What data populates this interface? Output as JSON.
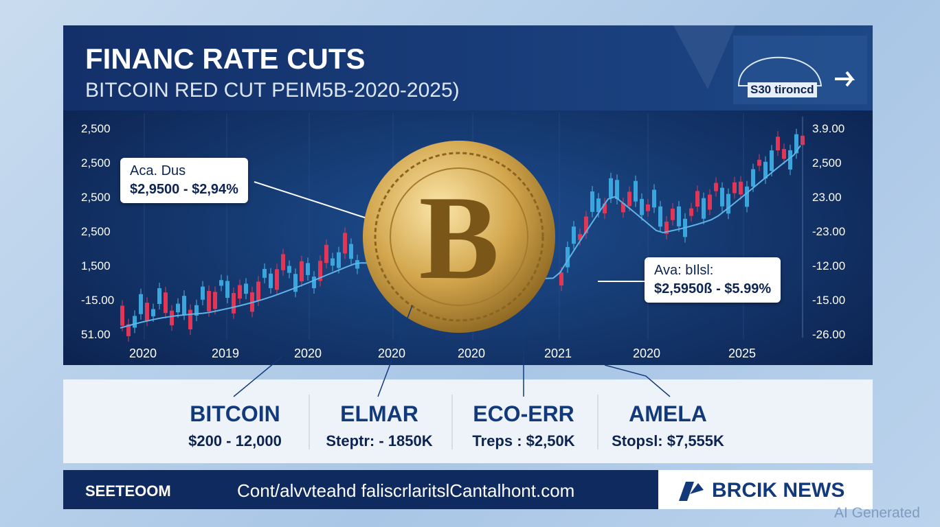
{
  "header": {
    "title": "FINANC RATE CUTS",
    "subtitle": "BITCOIN RED CUT PEIM5B-2020-2025)",
    "badge": "S30 tironcd"
  },
  "left_axis": [
    "2,500",
    "2,500",
    "2,500",
    "2,500",
    "1,500",
    "-15.00",
    "51.00"
  ],
  "right_axis": [
    "3.9.00",
    "2,500",
    "23.00",
    "-23.00",
    "-12.00",
    "-15.00",
    "-26.00"
  ],
  "x_labels": [
    "2020",
    "2019",
    "2020",
    "2020",
    "2020",
    "2021",
    "2020",
    "2025"
  ],
  "coin": {
    "symbol": "B"
  },
  "callouts": [
    {
      "line1": "Aca. Dus",
      "line2": "$2,9500 - $2,94%"
    },
    {
      "line1": "Ava: bIlsl:",
      "line2": "$2,5950ß - $5.99%"
    }
  ],
  "stats": [
    {
      "name": "BITCOIN",
      "value": "$200 - 12,000"
    },
    {
      "name": "ELMAR",
      "value": "Steptr: - 1850K"
    },
    {
      "name": "ECO-ERR",
      "value": "Treps : $2,50K"
    },
    {
      "name": "AMELA",
      "value": "Stopsl: $7,555K"
    }
  ],
  "footer": {
    "left": "SEETEOOM",
    "url": "Cont/alvvteahd faliscrlaritslCantalhont.com",
    "brand": "BRCIK NEWS"
  },
  "watermark": "AI Generated"
}
